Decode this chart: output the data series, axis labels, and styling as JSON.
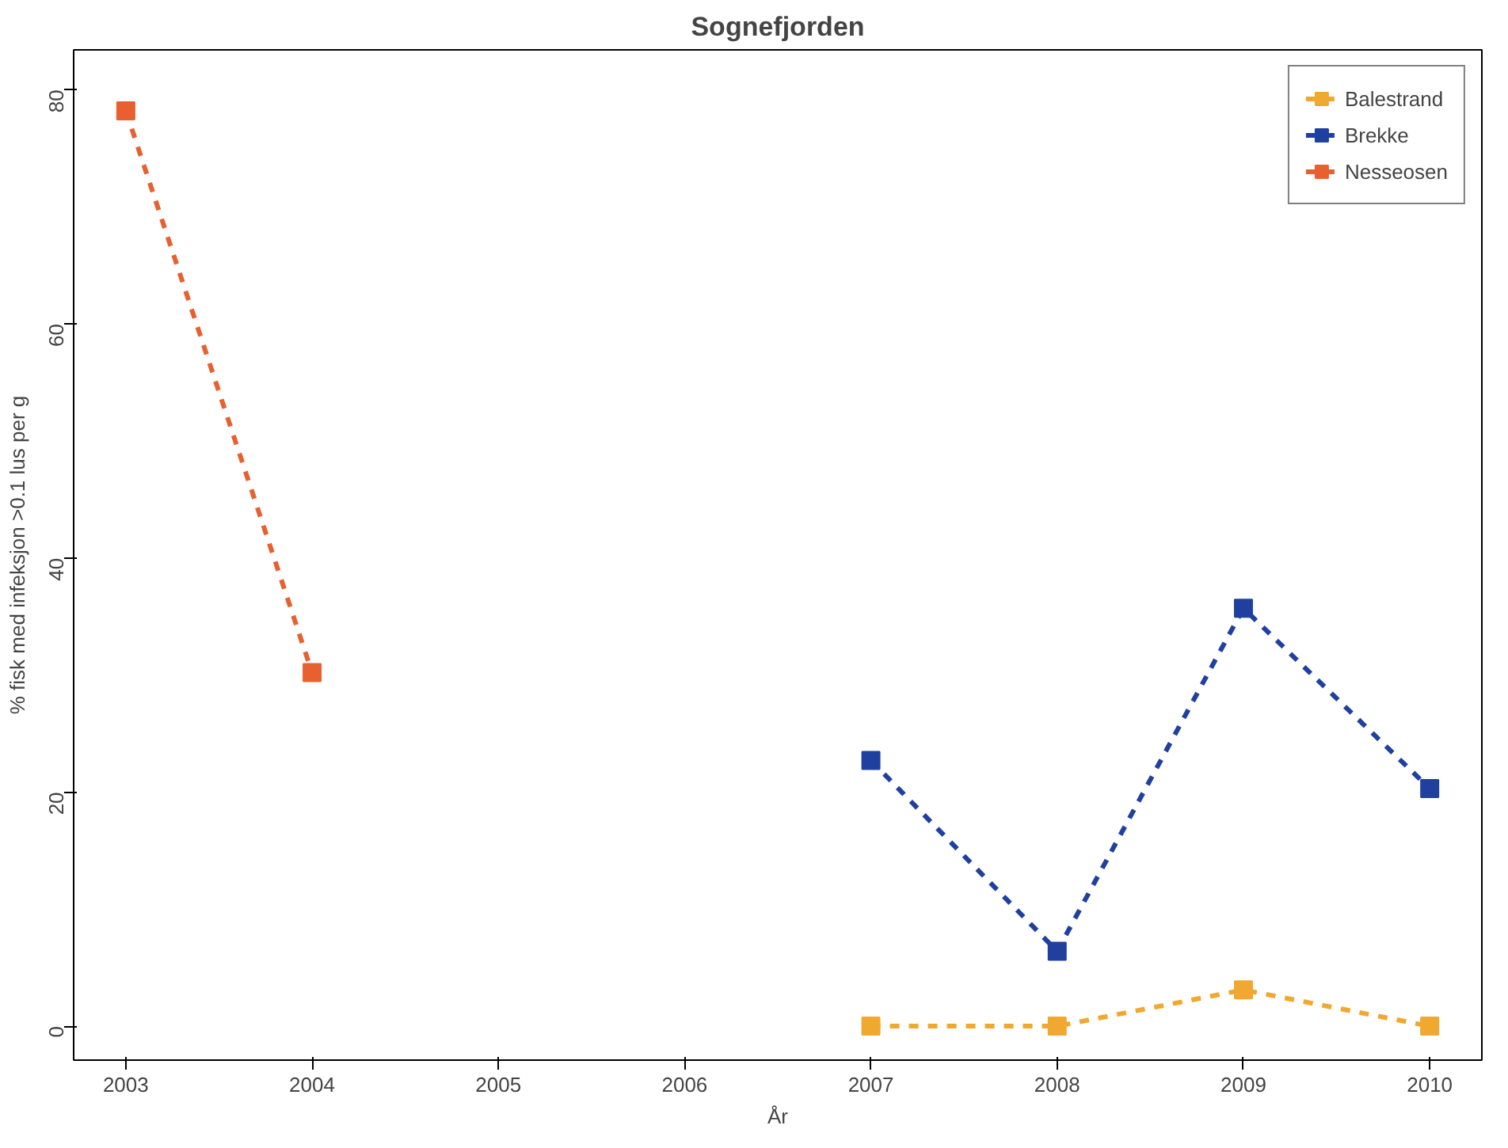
{
  "chart_data": {
    "type": "line",
    "title": "Sognefjorden",
    "xlabel": "År",
    "ylabel": "% fisk med infeksjon >0.1 lus per g",
    "x": [
      2003,
      2004,
      2005,
      2006,
      2007,
      2008,
      2009,
      2010
    ],
    "series": [
      {
        "name": "Balestrand",
        "color": "#f0a830",
        "values": [
          null,
          null,
          null,
          null,
          0,
          0,
          3.1,
          0
        ]
      },
      {
        "name": "Brekke",
        "color": "#2040a0",
        "values": [
          null,
          null,
          null,
          null,
          22.7,
          6.4,
          35.7,
          20.3
        ]
      },
      {
        "name": "Nesseosen",
        "color": "#e86030",
        "values": [
          78.2,
          30.2,
          null,
          null,
          null,
          null,
          null,
          null
        ]
      }
    ],
    "xlim": [
      2002.72,
      2010.28
    ],
    "ylim": [
      -2.9,
      83.4
    ],
    "xticks": [
      2003,
      2004,
      2005,
      2006,
      2007,
      2008,
      2009,
      2010
    ],
    "yticks": [
      0,
      20,
      40,
      60,
      80
    ],
    "grid": false,
    "legend": "top right",
    "marker": "square",
    "line_style": "dashed"
  }
}
